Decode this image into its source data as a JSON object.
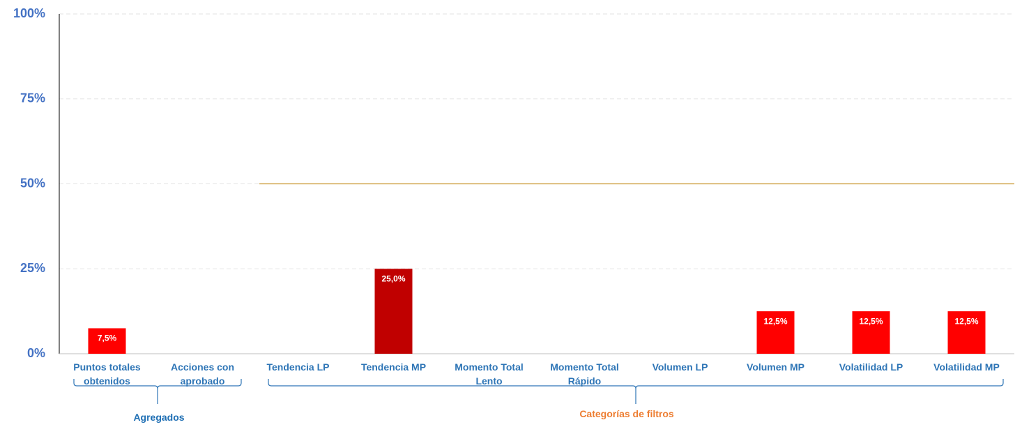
{
  "chart_data": {
    "type": "bar",
    "categories": [
      "Puntos totales obtenidos",
      "Acciones con aprobado",
      "Tendencia LP",
      "Tendencia MP",
      "Momento Total Lento",
      "Momento Total Rápido",
      "Volumen LP",
      "Volumen MP",
      "Volatilidad LP",
      "Volatilidad MP"
    ],
    "values": [
      7.5,
      0,
      0,
      25,
      0,
      0,
      0,
      12.5,
      12.5,
      12.5
    ],
    "value_labels": [
      "7,5%",
      null,
      null,
      "25,0%",
      null,
      null,
      null,
      "12,5%",
      "12,5%",
      "12,5%"
    ],
    "colors": [
      "#ff0000",
      "#ff0000",
      "#ff0000",
      "#c00000",
      "#ff0000",
      "#ff0000",
      "#ff0000",
      "#ff0000",
      "#ff0000",
      "#ff0000"
    ],
    "ylim": [
      0,
      100
    ],
    "yticks": [
      {
        "value": 0,
        "label": "0%"
      },
      {
        "value": 25,
        "label": "25%"
      },
      {
        "value": 50,
        "label": "50%"
      },
      {
        "value": 75,
        "label": "75%"
      },
      {
        "value": 100,
        "label": "100%"
      }
    ],
    "grid": true,
    "reference_line": {
      "value": 50,
      "color": "#c9962f"
    },
    "groups": [
      {
        "label": "Agregados",
        "color": "#1f6fb4"
      },
      {
        "label": "Categorías de filtros",
        "color": "#ed7d31"
      }
    ]
  }
}
